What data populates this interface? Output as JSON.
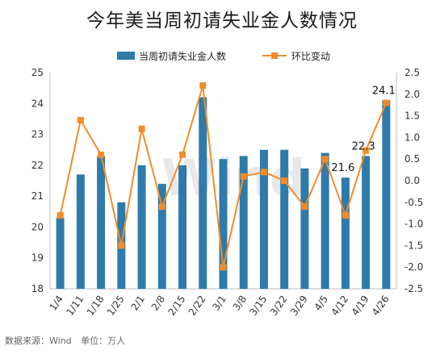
{
  "title": "今年美当周初请失业金人数情况",
  "watermark": "Wind",
  "footer": {
    "source": "数据来源：Wind",
    "unit": "单位：万人"
  },
  "colors": {
    "bar": "#2e7bab",
    "line": "#f28c28"
  },
  "chart_data": {
    "type": "bar+line",
    "categories": [
      "1/4",
      "1/11",
      "1/18",
      "1/25",
      "2/1",
      "2/8",
      "2/15",
      "2/22",
      "3/1",
      "3/8",
      "3/15",
      "3/22",
      "3/29",
      "4/5",
      "4/12",
      "4/19",
      "4/26"
    ],
    "series": [
      {
        "name": "当周初请失业金人数",
        "type": "bar",
        "axis": "left",
        "values": [
          20.3,
          21.7,
          22.3,
          20.8,
          22.0,
          21.4,
          22.0,
          24.2,
          22.2,
          22.3,
          22.5,
          22.5,
          21.9,
          22.4,
          21.6,
          22.3,
          24.1
        ]
      },
      {
        "name": "环比变动",
        "type": "line",
        "axis": "right",
        "values": [
          -0.8,
          1.4,
          0.6,
          -1.5,
          1.2,
          -0.6,
          0.6,
          2.2,
          -2.0,
          0.1,
          0.2,
          0.0,
          -0.6,
          0.5,
          -0.8,
          0.7,
          1.8
        ]
      }
    ],
    "data_labels": [
      {
        "index": 14,
        "text": "21.6"
      },
      {
        "index": 15,
        "text": "22.3"
      },
      {
        "index": 16,
        "text": "24.1"
      }
    ],
    "y_left": {
      "min": 18,
      "max": 25,
      "ticks": [
        "18",
        "19",
        "20",
        "21",
        "22",
        "23",
        "24",
        "25"
      ]
    },
    "y_right": {
      "min": -2.5,
      "max": 2.5,
      "ticks": [
        "-2.5",
        "-2.0",
        "-1.5",
        "-1.0",
        "-0.5",
        "0.0",
        "0.5",
        "1.0",
        "1.5",
        "2.0",
        "2.5"
      ]
    },
    "legend_position": "top",
    "grid": false
  }
}
